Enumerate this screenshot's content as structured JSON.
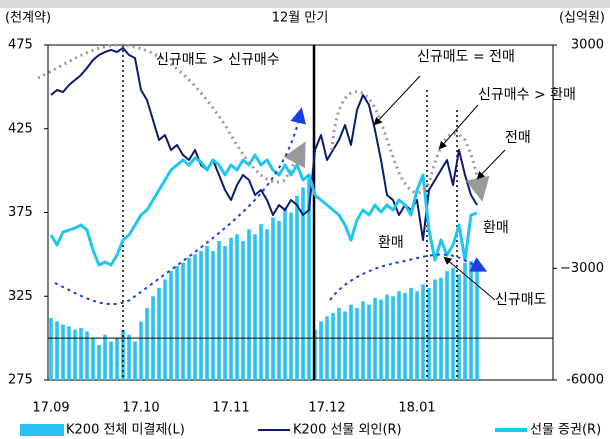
{
  "chart_data": {
    "type": "bar_line",
    "y_label": "(천계약)",
    "y2_label": "(십억원)",
    "top_label": "12월 만기",
    "categories": [
      "17.09",
      null,
      null,
      null,
      null,
      null,
      null,
      null,
      null,
      null,
      null,
      null,
      null,
      null,
      null,
      "17.10",
      null,
      null,
      null,
      null,
      null,
      null,
      null,
      null,
      null,
      null,
      null,
      null,
      null,
      null,
      "17.11",
      null,
      null,
      null,
      null,
      null,
      null,
      null,
      null,
      null,
      null,
      null,
      null,
      null,
      null,
      null,
      "17.12",
      null,
      null,
      null,
      null,
      null,
      null,
      null,
      null,
      null,
      null,
      null,
      null,
      null,
      null,
      "18.01",
      null,
      null,
      null,
      null,
      null,
      null,
      null,
      null,
      null,
      null
    ],
    "series": [
      {
        "name": "K200 전체 미결제(L)",
        "color": "#29c4f4",
        "kind": "bar",
        "axis": "y",
        "values": [
          312,
          310,
          308,
          307,
          305,
          306,
          304,
          300,
          296,
          302,
          298,
          300,
          305,
          302,
          298,
          310,
          318,
          325,
          330,
          335,
          340,
          343,
          345,
          348,
          350,
          352,
          355,
          352,
          358,
          355,
          360,
          362,
          358,
          365,
          362,
          368,
          365,
          372,
          370,
          378,
          375,
          385,
          390,
          395,
          305,
          310,
          313,
          315,
          318,
          316,
          320,
          318,
          322,
          320,
          324,
          323,
          326,
          325,
          328,
          327,
          330,
          328,
          332,
          330,
          335,
          336,
          340,
          342,
          338,
          345,
          346,
          347
        ]
      },
      {
        "name": "K200 선물 외인(R)",
        "color": "#0b1a72",
        "kind": "line",
        "axis": "y2",
        "values": [
          1657,
          1791,
          1737,
          1925,
          2060,
          2194,
          2382,
          2597,
          2731,
          2812,
          2866,
          2812,
          2919,
          2731,
          2650,
          1791,
          1522,
          985,
          448,
          582,
          179,
          313,
          45,
          -90,
          179,
          -224,
          -358,
          -90,
          -493,
          -896,
          -1164,
          -761,
          -493,
          -627,
          -1030,
          -896,
          -1164,
          -1567,
          -1298,
          -1433,
          -1164,
          -1298,
          -1567,
          -1433,
          179,
          582,
          -90,
          179,
          448,
          850,
          313,
          1254,
          1657,
          1388,
          716,
          -90,
          -1030,
          -1164,
          -1567,
          -1298,
          -1433,
          -1164,
          -2240,
          -896,
          -627,
          -358,
          -90,
          -761,
          179,
          -493,
          -1030,
          -1298
        ]
      },
      {
        "name": "선물 증권(R)",
        "color": "#1ec6f2",
        "kind": "line",
        "axis": "y2",
        "values": [
          -2105,
          -2374,
          -2025,
          -1971,
          -1917,
          -1837,
          -1971,
          -2508,
          -2911,
          -2831,
          -2911,
          -2643,
          -2240,
          -2105,
          -1837,
          -1567,
          -1433,
          -1164,
          -896,
          -627,
          -358,
          -224,
          -90,
          -224,
          -36,
          -143,
          -358,
          -90,
          -224,
          -493,
          -224,
          -358,
          -90,
          -224,
          45,
          -224,
          -90,
          -358,
          -493,
          -224,
          -493,
          -224,
          -627,
          -493,
          -1030,
          -1164,
          -1298,
          -1433,
          -1567,
          -1837,
          -2240,
          -1702,
          -1433,
          -1567,
          -1298,
          -1487,
          -1298,
          -1433,
          -1164,
          -1298,
          -1567,
          -896,
          -493,
          -1971,
          -2777,
          -2240,
          -2643,
          -2374,
          -1837,
          -2777,
          -1567,
          -1514
        ]
      }
    ],
    "ylim": [
      275,
      475
    ],
    "yticks": [
      275,
      325,
      375,
      425,
      475
    ],
    "y2lim": [
      -6000,
      3000
    ],
    "y2ticks": [
      -6000,
      {
        "value": -3000,
        "label": "−3000"
      },
      3000
    ],
    "reference_line": 300,
    "annotations": [
      "신규매도 > 신규매수",
      "신규매도 = 전매",
      "신규매수 > 환매",
      "전매",
      "환매",
      "환매",
      "신규매도"
    ],
    "grid": false
  }
}
